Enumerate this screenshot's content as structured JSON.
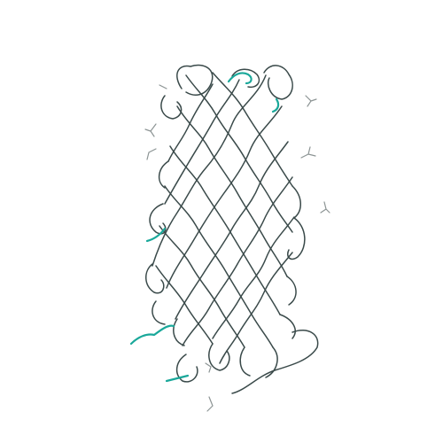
{
  "image": {
    "subject": "protein-backbone-trace",
    "colors": {
      "background": "#ffffff",
      "backbone": "#3a4a4a",
      "accent": "#1aa89a",
      "sidechain": "#8c9494"
    }
  }
}
